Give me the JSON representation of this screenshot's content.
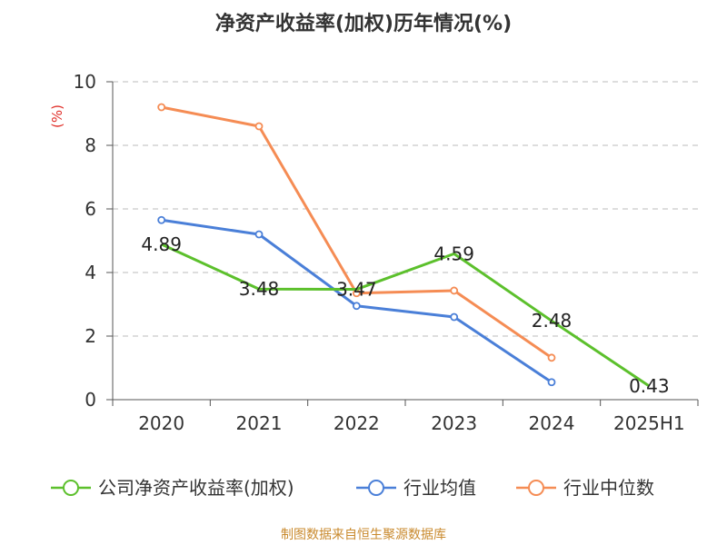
{
  "colors": {
    "company": "#5cc02c",
    "average": "#4a7fd8",
    "median": "#f58c54",
    "grid": "#bbbbbb",
    "axis": "#555555",
    "unit": "#e0302a",
    "source": "#c98a2e"
  },
  "chart_data": {
    "type": "line",
    "title": "净资产收益率(加权)历年情况(%)",
    "ylabel": "(%)",
    "ylim": [
      0,
      10
    ],
    "yticks": [
      0,
      2,
      4,
      6,
      8,
      10
    ],
    "grid": true,
    "legend_position": "bottom",
    "categories": [
      "2020",
      "2021",
      "2022",
      "2023",
      "2024",
      "2025H1"
    ],
    "series": [
      {
        "name": "公司净资产收益率(加权)",
        "color": "#5cc02c",
        "values": [
          4.89,
          3.48,
          3.47,
          4.59,
          2.48,
          0.43
        ],
        "labels": [
          "4.89",
          "3.48",
          "3.47",
          "4.59",
          "2.48",
          "0.43"
        ]
      },
      {
        "name": "行业均值",
        "color": "#4a7fd8",
        "values": [
          5.65,
          5.2,
          2.95,
          2.6,
          0.55,
          null
        ]
      },
      {
        "name": "行业中位数",
        "color": "#f58c54",
        "values": [
          9.2,
          8.6,
          3.35,
          3.43,
          1.32,
          null
        ]
      }
    ]
  },
  "footer": {
    "source": "制图数据来自恒生聚源数据库"
  }
}
